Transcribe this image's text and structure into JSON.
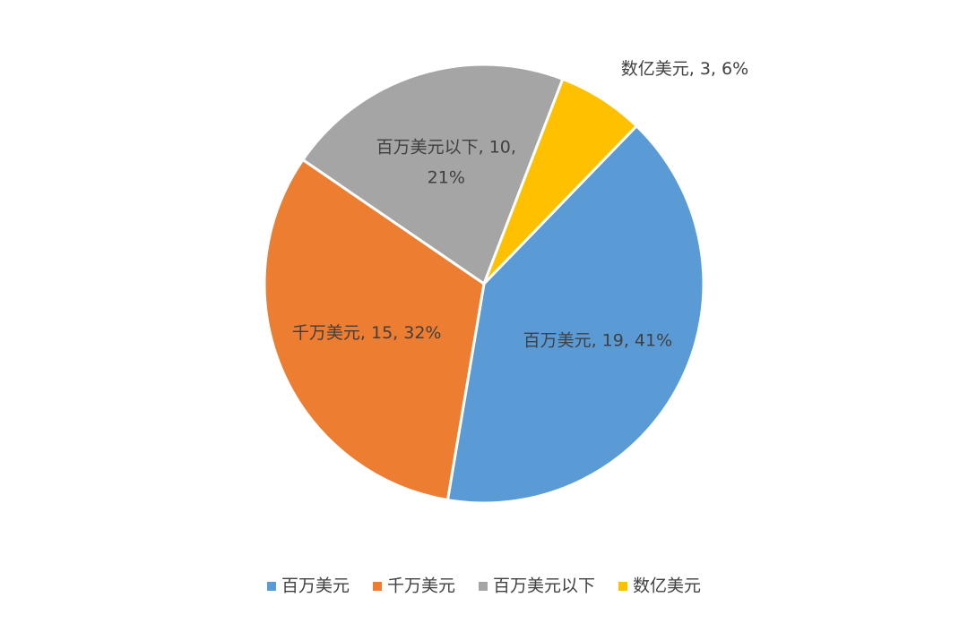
{
  "chart_data": {
    "type": "pie",
    "categories": [
      "百万美元",
      "千万美元",
      "百万美元以下",
      "数亿美元"
    ],
    "values": [
      19,
      15,
      10,
      3
    ],
    "value_labels": [
      "百万美元, 19, 41%",
      "千万美元, 15, 32%",
      "百万美元以下, 10, 21%",
      "数亿美元, 3, 6%"
    ],
    "colors": [
      "#5b9bd5",
      "#ed7d31",
      "#a5a5a5",
      "#ffc000"
    ],
    "legend": "bottom"
  }
}
